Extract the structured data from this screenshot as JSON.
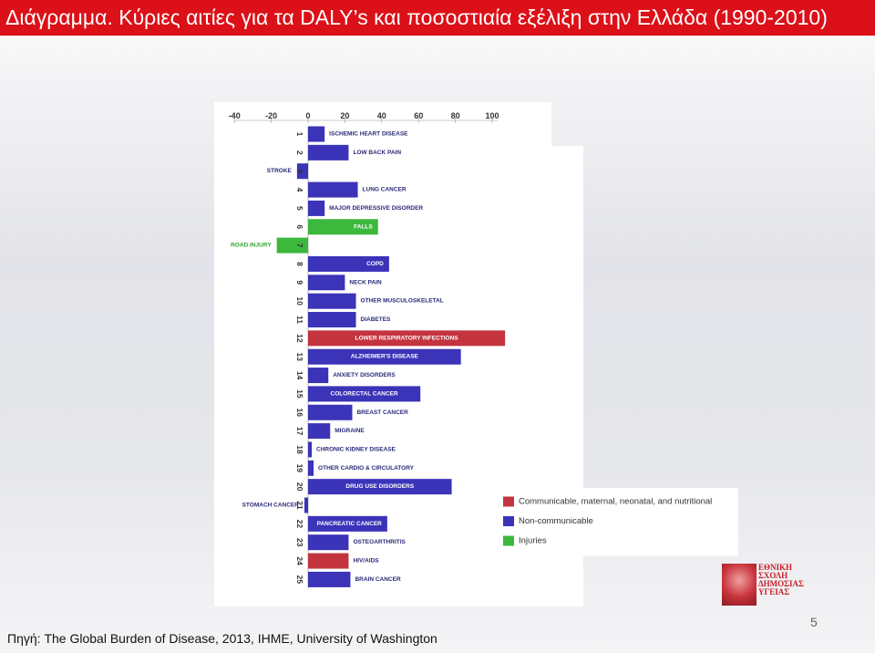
{
  "header": {
    "title": "Διάγραμμα. Κύριες αιτίες για τα DALY’s και ποσοστιαία εξέλιξη στην Ελλάδα (1990-2010)"
  },
  "footer": {
    "source": "Πηγή: The Global Burden of Disease, 2013, IHME, University of Washington",
    "page_number": "5"
  },
  "logo": {
    "lines": [
      "ΕΘΝΙΚΗ",
      "ΣΧΟΛΗ",
      "ΔΗΜΟΣΙΑΣ",
      "ΥΓΕΙΑΣ"
    ]
  },
  "colors": {
    "communicable": "#c3343f",
    "non_communicable": "#3b33b8",
    "injuries": "#3cb83c"
  },
  "chart_data": {
    "type": "bar",
    "orientation": "horizontal",
    "x_ticks": [
      -40,
      -20,
      0,
      20,
      40,
      60,
      80,
      100
    ],
    "xlim": [
      -40,
      100
    ],
    "grid": false,
    "legend_position": "bottom-right",
    "legend": [
      {
        "key": "communicable",
        "label": "Communicable, maternal, neonatal, and nutritional"
      },
      {
        "key": "non_communicable",
        "label": "Non-communicable"
      },
      {
        "key": "injuries",
        "label": "Injuries"
      }
    ],
    "bars": [
      {
        "rank": "1",
        "label": "ISCHEMIC HEART DISEASE",
        "value": 9,
        "group": "non_communicable"
      },
      {
        "rank": "2",
        "label": "LOW BACK PAIN",
        "value": 22,
        "group": "non_communicable"
      },
      {
        "rank": "3",
        "label": "STROKE",
        "value": -6,
        "group": "non_communicable"
      },
      {
        "rank": "4",
        "label": "LUNG CANCER",
        "value": 27,
        "group": "non_communicable"
      },
      {
        "rank": "5",
        "label": "MAJOR DEPRESSIVE DISORDER",
        "value": 9,
        "group": "non_communicable"
      },
      {
        "rank": "6",
        "label": "FALLS",
        "value": 38,
        "group": "injuries"
      },
      {
        "rank": "7",
        "label": "ROAD INJURY",
        "value": -17,
        "group": "injuries"
      },
      {
        "rank": "8",
        "label": "COPD",
        "value": 44,
        "group": "non_communicable"
      },
      {
        "rank": "9",
        "label": "NECK PAIN",
        "value": 20,
        "group": "non_communicable"
      },
      {
        "rank": "10",
        "label": "OTHER MUSCULOSKELETAL",
        "value": 26,
        "group": "non_communicable"
      },
      {
        "rank": "11",
        "label": "DIABETES",
        "value": 26,
        "group": "non_communicable"
      },
      {
        "rank": "12",
        "label": "LOWER RESPIRATORY INFECTIONS",
        "value": 107,
        "group": "communicable"
      },
      {
        "rank": "13",
        "label": "ALZHEIMER'S DISEASE",
        "value": 83,
        "group": "non_communicable"
      },
      {
        "rank": "14",
        "label": "ANXIETY DISORDERS",
        "value": 11,
        "group": "non_communicable"
      },
      {
        "rank": "15",
        "label": "COLORECTAL CANCER",
        "value": 61,
        "group": "non_communicable"
      },
      {
        "rank": "16",
        "label": "BREAST CANCER",
        "value": 24,
        "group": "non_communicable"
      },
      {
        "rank": "17",
        "label": "MIGRAINE",
        "value": 12,
        "group": "non_communicable"
      },
      {
        "rank": "18",
        "label": "CHRONIC KIDNEY DISEASE",
        "value": 2,
        "group": "non_communicable"
      },
      {
        "rank": "19",
        "label": "OTHER CARDIO & CIRCULATORY",
        "value": 3,
        "group": "non_communicable"
      },
      {
        "rank": "20",
        "label": "DRUG USE DISORDERS",
        "value": 78,
        "group": "non_communicable"
      },
      {
        "rank": "21",
        "label": "STOMACH CANCER",
        "value": -2,
        "group": "non_communicable"
      },
      {
        "rank": "22",
        "label": "PANCREATIC CANCER",
        "value": 43,
        "group": "non_communicable"
      },
      {
        "rank": "23",
        "label": "OSTEOARTHRITIS",
        "value": 22,
        "group": "non_communicable"
      },
      {
        "rank": "24",
        "label": "HIV/AIDS",
        "value": 22,
        "group": "communicable"
      },
      {
        "rank": "25",
        "label": "BRAIN CANCER",
        "value": 23,
        "group": "non_communicable"
      }
    ]
  }
}
